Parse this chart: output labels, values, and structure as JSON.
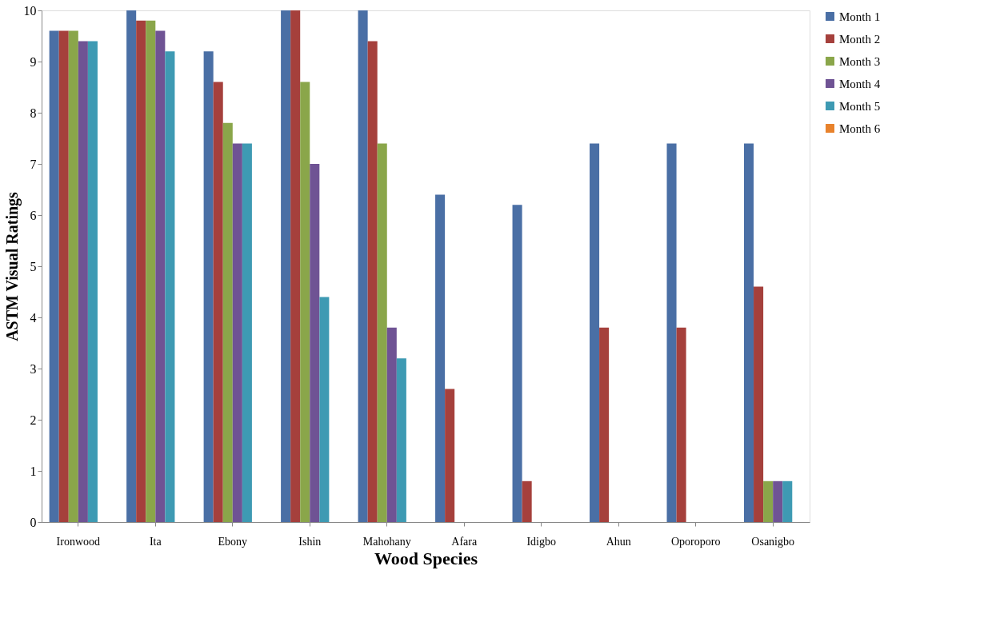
{
  "chart_data": {
    "type": "bar",
    "xlabel": "Wood Species",
    "ylabel": "ASTM Visual Ratings",
    "categories": [
      "Ironwood",
      "Ita",
      "Ebony",
      "Ishin",
      "Mahohany",
      "Afara",
      "Idigbo",
      "Ahun",
      "Oporoporo",
      "Osanigbo"
    ],
    "series": [
      {
        "name": "Month 1",
        "color": "#4a6fa5",
        "values": [
          9.6,
          10,
          9.2,
          10,
          10,
          6.4,
          6.2,
          7.4,
          7.4,
          7.4
        ]
      },
      {
        "name": "Month 2",
        "color": "#a5403c",
        "values": [
          9.6,
          9.8,
          8.6,
          10,
          9.4,
          2.6,
          0.8,
          3.8,
          3.8,
          4.6
        ]
      },
      {
        "name": "Month 3",
        "color": "#8aa64a",
        "values": [
          9.6,
          9.8,
          7.8,
          8.6,
          7.4,
          0,
          0,
          0,
          0,
          0.8
        ]
      },
      {
        "name": "Month 4",
        "color": "#6f5394",
        "values": [
          9.4,
          9.6,
          7.4,
          7.0,
          3.8,
          0,
          0,
          0,
          0,
          0.8
        ]
      },
      {
        "name": "Month 5",
        "color": "#3e9ab3",
        "values": [
          9.4,
          9.2,
          7.4,
          4.4,
          3.2,
          0,
          0,
          0,
          0,
          0.8
        ]
      },
      {
        "name": "Month 6",
        "color": "#e8822c",
        "values": [
          0,
          0,
          0,
          0,
          0,
          0,
          0,
          0,
          0,
          0
        ]
      }
    ],
    "ylim": [
      0,
      10
    ],
    "yticks": [
      0,
      1,
      2,
      3,
      4,
      5,
      6,
      7,
      8,
      9,
      10
    ],
    "legend": "top right"
  }
}
